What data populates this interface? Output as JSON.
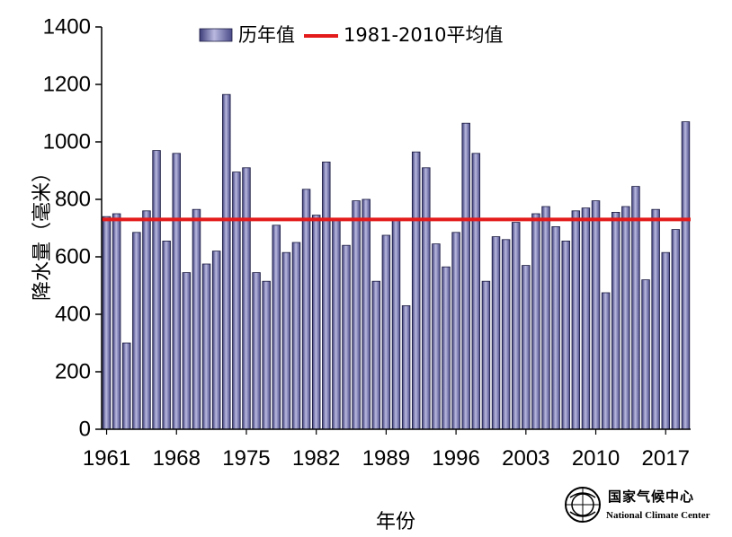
{
  "chart_data": {
    "type": "bar",
    "ylabel": "降水量（毫米）",
    "xlabel": "年份",
    "ylim": [
      0,
      1400
    ],
    "yticks": [
      0,
      200,
      400,
      600,
      800,
      1000,
      1200,
      1400
    ],
    "xtick_labels": [
      "1961",
      "1968",
      "1975",
      "1982",
      "1989",
      "1996",
      "2003",
      "2010",
      "2017"
    ],
    "grid": false,
    "legend_position": "top",
    "series": [
      {
        "name": "历年值",
        "color": "#6f6fa8",
        "categories": [
          1961,
          1962,
          1963,
          1964,
          1965,
          1966,
          1967,
          1968,
          1969,
          1970,
          1971,
          1972,
          1973,
          1974,
          1975,
          1976,
          1977,
          1978,
          1979,
          1980,
          1981,
          1982,
          1983,
          1984,
          1985,
          1986,
          1987,
          1988,
          1989,
          1990,
          1991,
          1992,
          1993,
          1994,
          1995,
          1996,
          1997,
          1998,
          1999,
          2000,
          2001,
          2002,
          2003,
          2004,
          2005,
          2006,
          2007,
          2008,
          2009,
          2010,
          2011,
          2012,
          2013,
          2014,
          2015,
          2016,
          2017,
          2018,
          2019
        ],
        "values": [
          740,
          750,
          300,
          685,
          760,
          970,
          655,
          960,
          545,
          765,
          575,
          620,
          1165,
          895,
          910,
          545,
          515,
          710,
          615,
          650,
          835,
          745,
          930,
          730,
          640,
          795,
          800,
          515,
          675,
          730,
          430,
          965,
          910,
          645,
          565,
          685,
          1065,
          960,
          515,
          670,
          660,
          720,
          570,
          750,
          775,
          705,
          655,
          760,
          770,
          795,
          475,
          755,
          775,
          845,
          520,
          765,
          615,
          695,
          1070
        ]
      },
      {
        "name": "1981-2010平均值",
        "type": "line",
        "color": "#e41b1b",
        "value": 730
      }
    ]
  },
  "logo": {
    "name_cn": "国家气候中心",
    "name_en": "National Climate Center"
  }
}
